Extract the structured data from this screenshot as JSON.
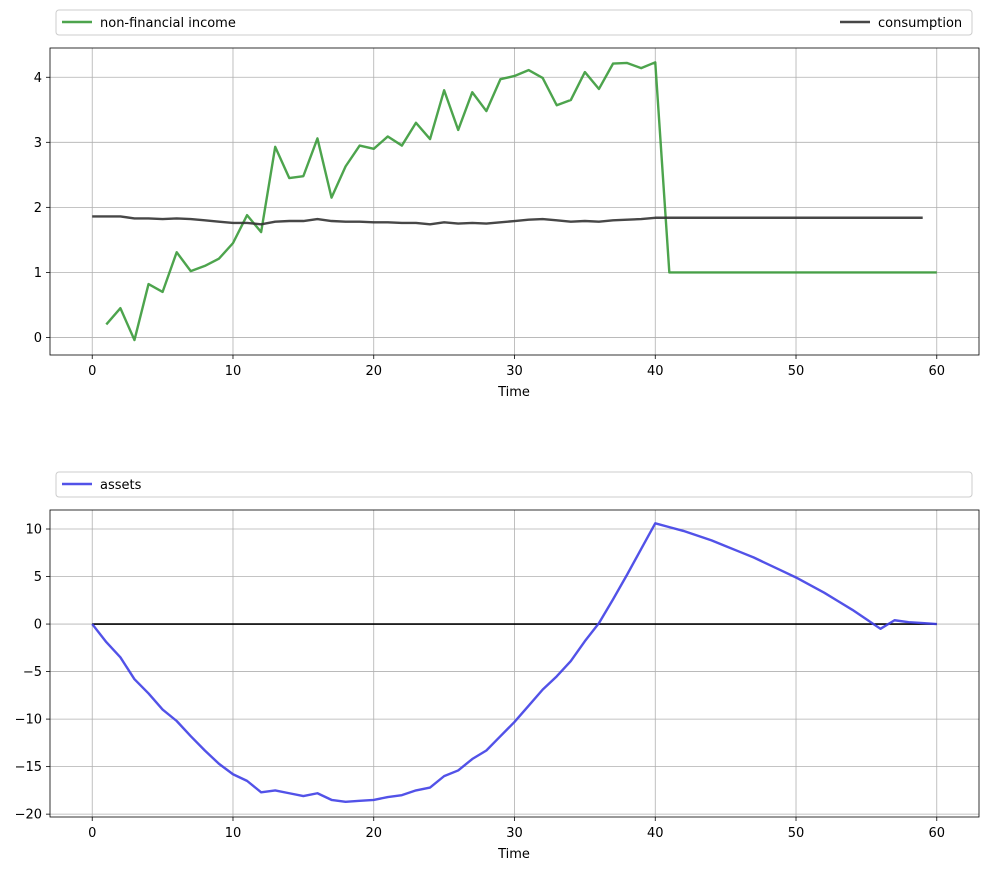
{
  "chart_data": [
    {
      "type": "line",
      "xlabel": "Time",
      "ylabel": "",
      "xlim": [
        -3,
        63
      ],
      "ylim": [
        -0.27,
        4.45
      ],
      "xticks": [
        0,
        10,
        20,
        30,
        40,
        50,
        60
      ],
      "yticks": [
        0,
        1,
        2,
        3,
        4
      ],
      "grid": true,
      "legend_placement": "above, spread across full width",
      "series": [
        {
          "name": "non-financial income",
          "color": "#3a9a3a",
          "x": [
            1,
            2,
            3,
            4,
            5,
            6,
            7,
            8,
            9,
            10,
            11,
            12,
            13,
            14,
            15,
            16,
            17,
            18,
            19,
            20,
            21,
            22,
            23,
            24,
            25,
            26,
            27,
            28,
            29,
            30,
            31,
            32,
            33,
            34,
            35,
            36,
            37,
            38,
            39,
            40,
            41,
            42,
            43,
            44,
            45,
            46,
            47,
            48,
            49,
            50,
            51,
            52,
            53,
            54,
            55,
            56,
            57,
            58,
            59,
            60
          ],
          "values": [
            0.2,
            0.45,
            -0.04,
            0.82,
            0.7,
            1.31,
            1.02,
            1.1,
            1.21,
            1.45,
            1.88,
            1.62,
            2.93,
            2.45,
            2.48,
            3.06,
            2.15,
            2.63,
            2.95,
            2.9,
            3.09,
            2.95,
            3.3,
            3.05,
            3.8,
            3.19,
            3.77,
            3.48,
            3.97,
            4.02,
            4.11,
            3.99,
            3.57,
            3.65,
            4.08,
            3.82,
            4.21,
            4.22,
            4.14,
            4.23,
            1.0,
            1.0,
            1.0,
            1.0,
            1.0,
            1.0,
            1.0,
            1.0,
            1.0,
            1.0,
            1.0,
            1.0,
            1.0,
            1.0,
            1.0,
            1.0,
            1.0,
            1.0,
            1.0,
            1.0
          ]
        },
        {
          "name": "consumption",
          "color": "#333333",
          "x": [
            0,
            1,
            2,
            3,
            4,
            5,
            6,
            7,
            8,
            9,
            10,
            11,
            12,
            13,
            14,
            15,
            16,
            17,
            18,
            19,
            20,
            21,
            22,
            23,
            24,
            25,
            26,
            27,
            28,
            29,
            30,
            31,
            32,
            33,
            34,
            35,
            36,
            37,
            38,
            39,
            40,
            41,
            42,
            43,
            44,
            45,
            46,
            47,
            48,
            49,
            50,
            51,
            52,
            53,
            54,
            55,
            56,
            57,
            58,
            59
          ],
          "values": [
            1.86,
            1.86,
            1.86,
            1.83,
            1.83,
            1.82,
            1.83,
            1.82,
            1.8,
            1.78,
            1.76,
            1.76,
            1.74,
            1.78,
            1.79,
            1.79,
            1.82,
            1.79,
            1.78,
            1.78,
            1.77,
            1.77,
            1.76,
            1.76,
            1.74,
            1.77,
            1.75,
            1.76,
            1.75,
            1.77,
            1.79,
            1.81,
            1.82,
            1.8,
            1.78,
            1.79,
            1.78,
            1.8,
            1.81,
            1.82,
            1.84,
            1.84,
            1.84,
            1.84,
            1.84,
            1.84,
            1.84,
            1.84,
            1.84,
            1.84,
            1.84,
            1.84,
            1.84,
            1.84,
            1.84,
            1.84,
            1.84,
            1.84,
            1.84,
            1.84
          ]
        }
      ]
    },
    {
      "type": "line",
      "xlabel": "Time",
      "ylabel": "",
      "xlim": [
        -3,
        63
      ],
      "ylim": [
        -20.3,
        12.0
      ],
      "xticks": [
        0,
        10,
        20,
        30,
        40,
        50,
        60
      ],
      "yticks": [
        10,
        5,
        0,
        -5,
        -10,
        -15,
        -20
      ],
      "grid": true,
      "legend_placement": "above, spread across full width",
      "reference_line": {
        "y": 0,
        "x_from": 0,
        "x_to": 60,
        "color": "#000000"
      },
      "series": [
        {
          "name": "assets",
          "color": "#3f3fe6",
          "x": [
            0,
            1,
            2,
            3,
            4,
            5,
            6,
            7,
            8,
            9,
            10,
            11,
            12,
            13,
            14,
            15,
            16,
            17,
            18,
            19,
            20,
            21,
            22,
            23,
            24,
            25,
            26,
            27,
            28,
            29,
            30,
            31,
            32,
            33,
            34,
            35,
            36,
            37,
            38,
            39,
            40,
            41,
            42,
            43,
            44,
            45,
            46,
            47,
            48,
            49,
            50,
            51,
            52,
            53,
            54,
            55,
            56,
            57,
            58,
            59,
            60
          ],
          "values": [
            0,
            -1.9,
            -3.5,
            -5.8,
            -7.3,
            -9.0,
            -10.2,
            -11.8,
            -13.3,
            -14.7,
            -15.8,
            -16.5,
            -17.7,
            -17.5,
            -17.8,
            -18.1,
            -17.8,
            -18.5,
            -18.7,
            -18.6,
            -18.5,
            -18.2,
            -18.0,
            -17.5,
            -17.2,
            -16.0,
            -15.4,
            -14.2,
            -13.3,
            -11.8,
            -10.3,
            -8.6,
            -6.9,
            -5.5,
            -3.9,
            -1.8,
            0.1,
            2.6,
            5.2,
            7.9,
            10.6,
            10.2,
            9.8,
            9.3,
            8.8,
            8.2,
            7.6,
            7.0,
            6.3,
            5.6,
            4.9,
            4.1,
            3.3,
            2.4,
            1.5,
            0.5,
            -0.5,
            0.4,
            0.2,
            0.1,
            0.0
          ]
        }
      ]
    }
  ]
}
